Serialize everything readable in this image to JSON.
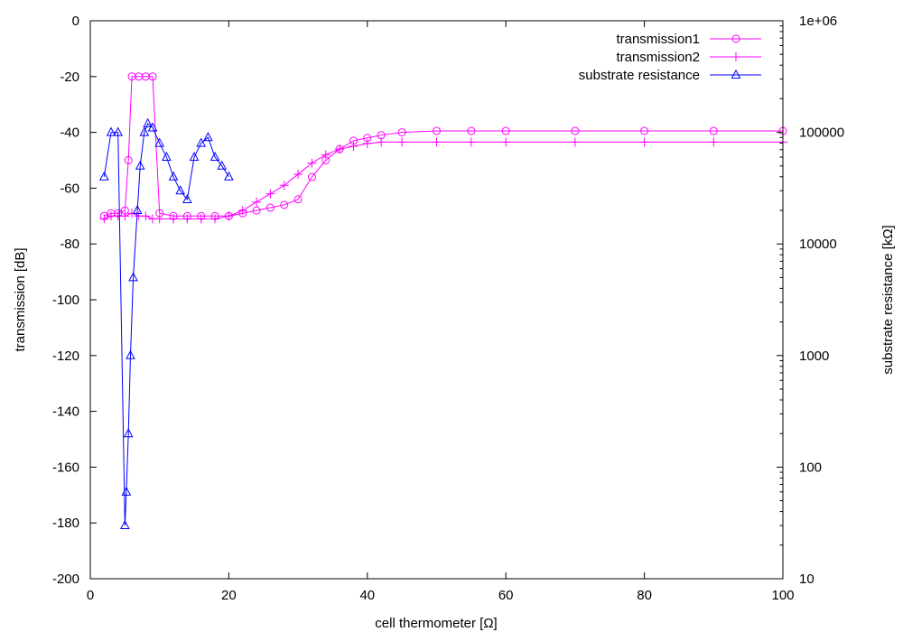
{
  "chart_data": {
    "type": "scatter",
    "xlabel": "cell thermometer [Ω]",
    "ylabel": "transmission [dB]",
    "y2label": "substrate resistance [kΩ]",
    "xlim": [
      0,
      100
    ],
    "ylim": [
      -200,
      0
    ],
    "y2lim": [
      10,
      1000000
    ],
    "y2scale": "log",
    "xticks": [
      "0",
      "20",
      "40",
      "60",
      "80",
      "100"
    ],
    "yticks": [
      "0",
      "-20",
      "-40",
      "-60",
      "-80",
      "-100",
      "-120",
      "-140",
      "-160",
      "-180",
      "-200"
    ],
    "y2ticks": [
      "1e+06",
      "100000",
      "10000",
      "1000",
      "100",
      "10"
    ],
    "legend_position": "top-right",
    "grid": false,
    "series": [
      {
        "name": "transmission1",
        "color": "#ff00ff",
        "marker": "circle",
        "axis": "y",
        "x": [
          2,
          3,
          4,
          5,
          5.5,
          6,
          7,
          8,
          9,
          10,
          12,
          14,
          16,
          18,
          20,
          22,
          24,
          26,
          28,
          30,
          32,
          34,
          36,
          38,
          40,
          42,
          45,
          50,
          55,
          60,
          70,
          80,
          90,
          100
        ],
        "y": [
          -70,
          -69,
          -69,
          -68,
          -50,
          -20,
          -20,
          -20,
          -20,
          -69,
          -70,
          -70,
          -70,
          -70,
          -70,
          -69,
          -68,
          -67,
          -66,
          -64,
          -56,
          -50,
          -46,
          -43,
          -42,
          -41,
          -40,
          -39.5,
          -39.5,
          -39.5,
          -39.5,
          -39.5,
          -39.5,
          -39.5
        ]
      },
      {
        "name": "transmission2",
        "color": "#ff00ff",
        "marker": "plus",
        "axis": "y",
        "x": [
          2,
          3,
          4,
          5,
          6,
          7,
          8,
          9,
          10,
          12,
          14,
          16,
          18,
          20,
          22,
          24,
          26,
          28,
          30,
          32,
          34,
          36,
          38,
          40,
          42,
          45,
          50,
          55,
          60,
          70,
          80,
          90,
          100
        ],
        "y": [
          -71,
          -70,
          -70,
          -70,
          -69,
          -70,
          -70,
          -71,
          -71,
          -71,
          -71,
          -71,
          -71,
          -70,
          -68,
          -65,
          -62,
          -59,
          -55,
          -51,
          -48,
          -46,
          -45,
          -44,
          -43.5,
          -43.5,
          -43.5,
          -43.5,
          -43.5,
          -43.5,
          -43.5,
          -43.5,
          -43.5
        ]
      },
      {
        "name": "substrate resistance",
        "color": "#0000ff",
        "marker": "triangle",
        "axis": "y2",
        "x": [
          2,
          3,
          4,
          5,
          5.2,
          5.5,
          5.8,
          6.2,
          6.8,
          7.2,
          7.8,
          8.3,
          9,
          10,
          11,
          12,
          13,
          14,
          15,
          16,
          17,
          18,
          19,
          20
        ],
        "y": [
          40000,
          100000,
          100000,
          30,
          60,
          200,
          1000,
          5000,
          20000,
          50000,
          100000,
          120000,
          110000,
          80000,
          60000,
          40000,
          30000,
          25000,
          60000,
          80000,
          90000,
          60000,
          50000,
          40000
        ]
      }
    ]
  }
}
